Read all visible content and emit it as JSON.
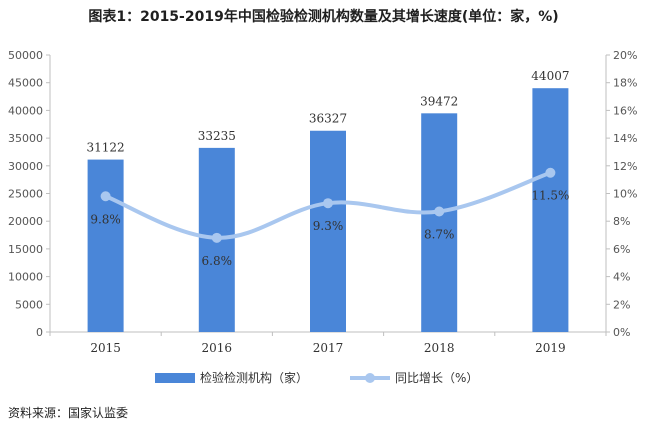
{
  "title": "图表1：2015-2019年中国检验检测机构数量及其增长速度(单位：家，%)",
  "source": "资料来源：国家认监委",
  "colors": {
    "bar": "#4a86d8",
    "line": "#a9c7ef",
    "axis": "#bfbfbf"
  },
  "chart_data": {
    "type": "bar",
    "categories": [
      "2015",
      "2016",
      "2017",
      "2018",
      "2019"
    ],
    "series": [
      {
        "name": "检验检测机构（家）",
        "type": "bar",
        "axis": "left",
        "values": [
          31122,
          33235,
          36327,
          39472,
          44007
        ],
        "labels": [
          "31122",
          "33235",
          "36327",
          "39472",
          "44007"
        ]
      },
      {
        "name": "同比增长（%）",
        "type": "line",
        "axis": "right",
        "values": [
          9.8,
          6.8,
          9.3,
          8.7,
          11.5
        ],
        "labels": [
          "9.8%",
          "6.8%",
          "9.3%",
          "8.7%",
          "11.5%"
        ]
      }
    ],
    "y_left": {
      "lim": [
        0,
        50000
      ],
      "ticks": [
        "0",
        "5000",
        "10000",
        "15000",
        "20000",
        "25000",
        "30000",
        "35000",
        "40000",
        "45000",
        "50000"
      ]
    },
    "y_right": {
      "lim": [
        0,
        20
      ],
      "ticks": [
        "0%",
        "2%",
        "4%",
        "6%",
        "8%",
        "10%",
        "12%",
        "14%",
        "16%",
        "18%",
        "20%"
      ]
    },
    "legend": "bottom"
  }
}
